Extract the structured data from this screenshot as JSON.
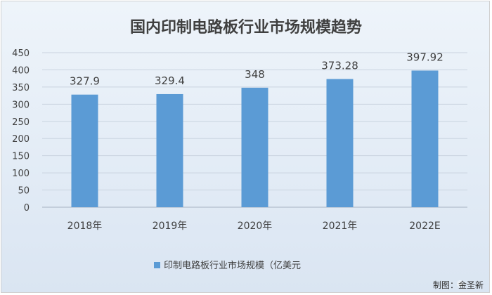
{
  "chart_data": {
    "type": "bar",
    "title": "国内印制电路板行业市场规模趋势",
    "categories": [
      "2018年",
      "2019年",
      "2020年",
      "2021年",
      "2022E"
    ],
    "series": [
      {
        "name": "印制电路板行业市场规模（亿美元",
        "values": [
          327.9,
          329.4,
          348,
          373.28,
          397.92
        ],
        "value_labels": [
          "327.9",
          "329.4",
          "348",
          "373.28",
          "397.92"
        ]
      }
    ],
    "ylim": [
      0,
      450
    ],
    "yticks": [
      "0",
      "50",
      "100",
      "150",
      "200",
      "250",
      "300",
      "350",
      "400",
      "450"
    ],
    "grid": true,
    "legend": "bottom-center",
    "xlabel": "",
    "ylabel": ""
  },
  "colors": {
    "bar": "#5b9bd5",
    "text": "#404040",
    "title": "#404040",
    "grid": "#c9d3df"
  },
  "footer": {
    "credit": "制图：金圣新",
    "watermark_icon": "weibo-watermark-icon"
  }
}
